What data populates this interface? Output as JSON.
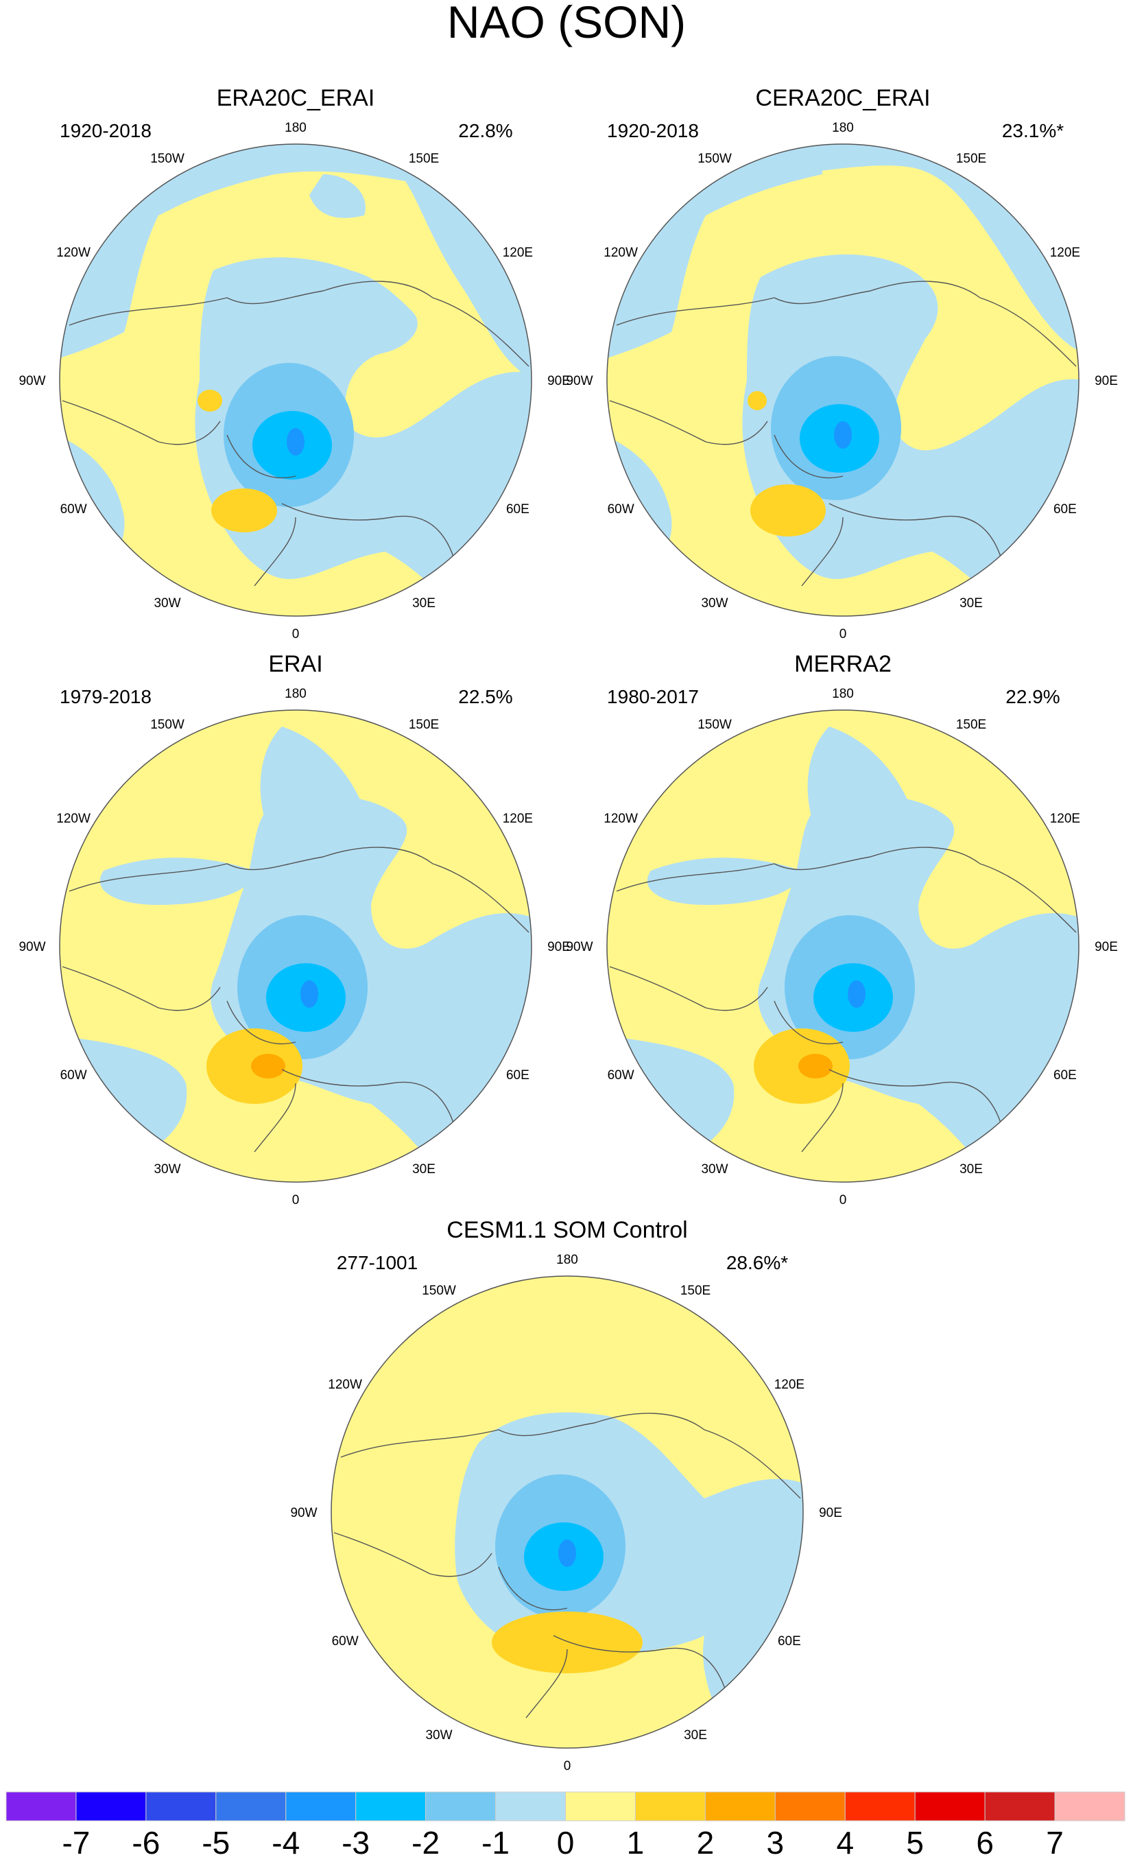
{
  "chart_data": {
    "type": "heatmap",
    "title": "NAO (SON)",
    "projection": "north polar stereographic",
    "panels": [
      {
        "title": "ERA20C_ERAI",
        "period": "1920-2018",
        "variance": "22.8%"
      },
      {
        "title": "CERA20C_ERAI",
        "period": "1920-2018",
        "variance": "23.1%*"
      },
      {
        "title": "ERAI",
        "period": "1979-2018",
        "variance": "22.5%"
      },
      {
        "title": "MERRA2",
        "period": "1980-2017",
        "variance": "22.9%"
      },
      {
        "title": "CESM1.1 SOM Control",
        "period": "277-1001",
        "variance": "28.6%*"
      }
    ],
    "longitude_labels": [
      "180",
      "150E",
      "120E",
      "90E",
      "60E",
      "30E",
      "0",
      "30W",
      "60W",
      "90W",
      "120W",
      "150W"
    ],
    "colorbar": {
      "levels": [
        "-7",
        "-6",
        "-5",
        "-4",
        "-3",
        "-2",
        "-1",
        "0",
        "1",
        "2",
        "3",
        "4",
        "5",
        "6",
        "7"
      ],
      "colors": [
        "#8021f0",
        "#1a00ff",
        "#2e4aeb",
        "#3476eb",
        "#1a96ff",
        "#00bfff",
        "#75c8f2",
        "#b3dff3",
        "#fff78c",
        "#ffd426",
        "#ffaa00",
        "#ff7a00",
        "#ff2e00",
        "#e80000",
        "#d11e1e",
        "#ffb3b3"
      ]
    }
  }
}
